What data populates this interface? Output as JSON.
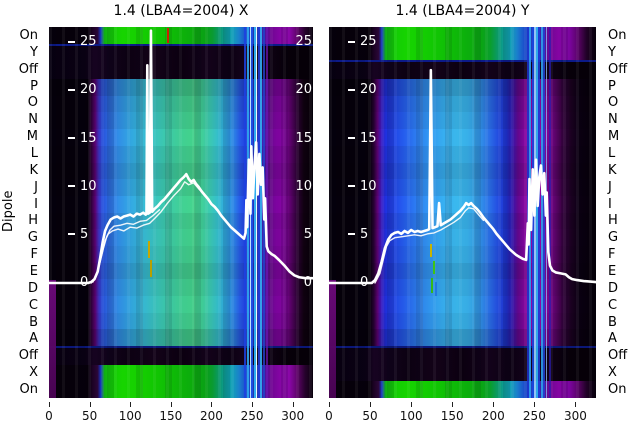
{
  "figure": {
    "ylabel": "Dipole",
    "row_labels": [
      "On",
      "Y",
      "Off",
      "P",
      "O",
      "N",
      "M",
      "L",
      "K",
      "J",
      "I",
      "H",
      "G",
      "F",
      "E",
      "D",
      "C",
      "B",
      "A",
      "Off",
      "X",
      "On"
    ],
    "palette": {
      "curve_white": "#ffffff",
      "heat_green": "#14ce02",
      "heat_cyan": "#33aec6",
      "heat_blue": "#2357de",
      "heat_purple": "#8a08a2",
      "heat_black": "#05000a",
      "mark_red": "#cc2200",
      "mark_yellow": "#c8b400",
      "mark_green": "#3ec414",
      "text_black": "#000000",
      "tick_white": "#ffffff"
    }
  },
  "chart_data": [
    {
      "type": "heatmap+line",
      "title": "1.4 (LBA4=2004) X",
      "x_range": [
        0,
        325
      ],
      "y_range": [
        -11.9,
        26.6
      ],
      "x_ticks": [
        0,
        50,
        100,
        150,
        200,
        250,
        300
      ],
      "y_ticks": [
        0,
        5,
        10,
        15,
        20,
        25
      ],
      "y_tick_labels_right": [
        0,
        5,
        10,
        15,
        20,
        25
      ],
      "row_bands": [
        "bright",
        "dark",
        "dark",
        "sig",
        "sig",
        "sig",
        "sig",
        "sig",
        "sig",
        "sig",
        "sig",
        "sig",
        "sig",
        "sig",
        "sig",
        "sig",
        "sig",
        "sig",
        "sig",
        "dark",
        "bright",
        "bright"
      ],
      "line_main": [
        [
          0,
          0
        ],
        [
          48,
          0
        ],
        [
          52,
          0.1
        ],
        [
          56,
          0.4
        ],
        [
          60,
          1.2
        ],
        [
          63,
          2.6
        ],
        [
          66,
          4.2
        ],
        [
          69,
          5.4
        ],
        [
          72,
          6.0
        ],
        [
          76,
          6.6
        ],
        [
          80,
          6.8
        ],
        [
          84,
          6.9
        ],
        [
          88,
          6.7
        ],
        [
          92,
          6.9
        ],
        [
          96,
          7.0
        ],
        [
          100,
          7.1
        ],
        [
          104,
          6.9
        ],
        [
          108,
          7.2
        ],
        [
          112,
          7.1
        ],
        [
          116,
          7.3
        ],
        [
          119,
          7.1
        ],
        [
          120,
          7.2
        ],
        [
          121,
          22.6
        ],
        [
          122,
          7.2
        ],
        [
          124,
          7.3
        ],
        [
          125.5,
          26.2
        ],
        [
          127,
          7.4
        ],
        [
          130,
          7.7
        ],
        [
          134,
          8.0
        ],
        [
          138,
          8.4
        ],
        [
          142,
          8.7
        ],
        [
          146,
          9.1
        ],
        [
          150,
          9.5
        ],
        [
          154,
          9.9
        ],
        [
          158,
          10.3
        ],
        [
          162,
          10.7
        ],
        [
          166,
          11.0
        ],
        [
          169,
          11.3
        ],
        [
          172,
          10.8
        ],
        [
          175,
          10.5
        ],
        [
          178,
          10.7
        ],
        [
          181,
          10.3
        ],
        [
          184,
          10.0
        ],
        [
          188,
          9.5
        ],
        [
          192,
          9.1
        ],
        [
          196,
          8.7
        ],
        [
          200,
          8.2
        ],
        [
          204,
          7.9
        ],
        [
          208,
          7.5
        ],
        [
          212,
          7.0
        ],
        [
          216,
          6.6
        ],
        [
          220,
          6.2
        ],
        [
          224,
          5.8
        ],
        [
          228,
          5.5
        ],
        [
          232,
          5.2
        ],
        [
          236,
          4.9
        ],
        [
          240,
          4.6
        ],
        [
          242,
          5.2
        ],
        [
          243,
          8.6
        ],
        [
          244,
          5.8
        ],
        [
          246,
          12.8
        ],
        [
          248,
          7.2
        ],
        [
          249,
          14.2
        ],
        [
          251,
          8.8
        ],
        [
          253,
          12.2
        ],
        [
          255,
          14.6
        ],
        [
          257,
          9.2
        ],
        [
          259,
          13.4
        ],
        [
          261,
          10.2
        ],
        [
          263,
          12.0
        ],
        [
          265,
          6.6
        ],
        [
          266,
          8.8
        ],
        [
          268,
          3.8
        ],
        [
          270,
          3.3
        ],
        [
          274,
          3.0
        ],
        [
          278,
          2.8
        ],
        [
          283,
          2.4
        ],
        [
          290,
          1.8
        ],
        [
          296,
          1.2
        ],
        [
          302,
          0.8
        ],
        [
          308,
          0.6
        ],
        [
          316,
          0.5
        ],
        [
          325,
          0.5
        ]
      ],
      "line_ghosts": [
        [
          [
            52,
            0
          ],
          [
            57,
            0.6
          ],
          [
            61,
            1.6
          ],
          [
            65,
            3.0
          ],
          [
            69,
            4.4
          ],
          [
            73,
            5.1
          ],
          [
            78,
            5.4
          ],
          [
            85,
            5.6
          ],
          [
            92,
            5.4
          ],
          [
            100,
            5.8
          ],
          [
            108,
            5.7
          ],
          [
            116,
            6.0
          ],
          [
            124,
            6.2
          ],
          [
            130,
            6.7
          ],
          [
            138,
            7.4
          ],
          [
            146,
            8.3
          ],
          [
            154,
            9.1
          ],
          [
            162,
            9.8
          ],
          [
            167,
            10.5
          ],
          [
            172,
            10.2
          ],
          [
            178,
            10.4
          ],
          [
            184,
            9.8
          ],
          [
            190,
            9.3
          ]
        ],
        [
          [
            54,
            0.1
          ],
          [
            59,
            1.0
          ],
          [
            63,
            2.2
          ],
          [
            67,
            3.6
          ],
          [
            71,
            4.8
          ],
          [
            75,
            5.5
          ],
          [
            80,
            5.9
          ],
          [
            88,
            6.0
          ],
          [
            96,
            6.2
          ],
          [
            104,
            6.1
          ],
          [
            112,
            6.4
          ],
          [
            120,
            6.5
          ],
          [
            128,
            7.0
          ],
          [
            136,
            7.6
          ]
        ]
      ],
      "marks": [
        {
          "x": 145,
          "v1": 24.9,
          "v2": 26.5,
          "w": 2,
          "color": "#cc2200"
        },
        {
          "x": 122,
          "v1": 2.6,
          "v2": 4.4,
          "w": 2,
          "color": "#c8a800"
        },
        {
          "x": 124,
          "v1": 0.6,
          "v2": 2.4,
          "w": 2,
          "color": "#b8a000"
        }
      ],
      "rfi_stripes": [
        {
          "x": 240,
          "w": 2,
          "color": "#1b3fe0",
          "opacity": 0.85
        },
        {
          "x": 244,
          "w": 2,
          "color": "#2fa9f0",
          "opacity": 0.9
        },
        {
          "x": 247,
          "w": 1,
          "color": "#bfe8ff",
          "opacity": 0.95
        },
        {
          "x": 249,
          "w": 2,
          "color": "#1e4fe8",
          "opacity": 0.9
        },
        {
          "x": 252,
          "w": 3,
          "color": "#2fb4f2",
          "opacity": 0.95
        },
        {
          "x": 255,
          "w": 1,
          "color": "#ffffff",
          "opacity": 0.9
        },
        {
          "x": 257,
          "w": 2,
          "color": "#1d3bd8",
          "opacity": 0.85
        },
        {
          "x": 260,
          "w": 2,
          "color": "#35aef0",
          "opacity": 0.9
        },
        {
          "x": 263,
          "w": 2,
          "color": "#2342cc",
          "opacity": 0.8
        },
        {
          "x": 267,
          "w": 2,
          "color": "#6d15b5",
          "opacity": 0.7
        }
      ]
    },
    {
      "type": "heatmap+line",
      "title": "1.4 (LBA4=2004) Y",
      "x_range": [
        0,
        325
      ],
      "y_range": [
        -11.9,
        26.6
      ],
      "x_ticks": [
        0,
        50,
        100,
        150,
        200,
        250,
        300
      ],
      "y_ticks": [
        0,
        5,
        10,
        15,
        20,
        25
      ],
      "row_bands": [
        "bright",
        "bright",
        "dark",
        "sig",
        "sig",
        "sig",
        "sig",
        "sig",
        "sig",
        "sig",
        "sig",
        "sig",
        "sig",
        "sig",
        "sig",
        "sig",
        "sig",
        "sig",
        "sig",
        "dark",
        "dark",
        "bright"
      ],
      "line_main": [
        [
          0,
          0
        ],
        [
          52,
          0
        ],
        [
          56,
          0.3
        ],
        [
          60,
          1.0
        ],
        [
          64,
          2.2
        ],
        [
          68,
          3.6
        ],
        [
          72,
          4.5
        ],
        [
          76,
          5.0
        ],
        [
          80,
          5.2
        ],
        [
          84,
          5.3
        ],
        [
          88,
          5.1
        ],
        [
          92,
          5.4
        ],
        [
          96,
          5.2
        ],
        [
          100,
          5.5
        ],
        [
          104,
          5.3
        ],
        [
          108,
          5.4
        ],
        [
          112,
          5.3
        ],
        [
          116,
          5.4
        ],
        [
          120,
          5.5
        ],
        [
          122,
          5.6
        ],
        [
          124,
          22.1
        ],
        [
          126,
          5.7
        ],
        [
          129,
          5.8
        ],
        [
          132,
          5.9
        ],
        [
          134,
          8.3
        ],
        [
          136,
          6.0
        ],
        [
          140,
          6.2
        ],
        [
          144,
          6.4
        ],
        [
          148,
          6.6
        ],
        [
          152,
          6.9
        ],
        [
          156,
          7.2
        ],
        [
          160,
          7.5
        ],
        [
          164,
          7.9
        ],
        [
          167,
          8.3
        ],
        [
          170,
          8.1
        ],
        [
          173,
          8.3
        ],
        [
          176,
          8.0
        ],
        [
          180,
          7.7
        ],
        [
          184,
          7.3
        ],
        [
          188,
          6.8
        ],
        [
          192,
          6.4
        ],
        [
          196,
          6.0
        ],
        [
          200,
          5.6
        ],
        [
          204,
          5.1
        ],
        [
          208,
          4.7
        ],
        [
          212,
          4.3
        ],
        [
          216,
          3.9
        ],
        [
          220,
          3.5
        ],
        [
          224,
          3.2
        ],
        [
          228,
          2.9
        ],
        [
          232,
          2.7
        ],
        [
          236,
          2.5
        ],
        [
          240,
          2.4
        ],
        [
          242,
          6.2
        ],
        [
          243,
          4.0
        ],
        [
          244,
          10.8
        ],
        [
          246,
          5.5
        ],
        [
          248,
          11.8
        ],
        [
          250,
          7.0
        ],
        [
          252,
          12.8
        ],
        [
          254,
          8.0
        ],
        [
          256,
          11.0
        ],
        [
          258,
          12.2
        ],
        [
          260,
          9.2
        ],
        [
          262,
          11.4
        ],
        [
          264,
          7.0
        ],
        [
          265,
          9.4
        ],
        [
          267,
          3.2
        ],
        [
          269,
          1.8
        ],
        [
          272,
          1.3
        ],
        [
          276,
          1.1
        ],
        [
          282,
          1.0
        ],
        [
          288,
          0.9
        ],
        [
          292,
          0.6
        ],
        [
          296,
          0.4
        ],
        [
          302,
          0.3
        ],
        [
          310,
          0.2
        ],
        [
          318,
          0.15
        ],
        [
          325,
          0.1
        ]
      ],
      "line_ghosts": [
        [
          [
            56,
            0
          ],
          [
            62,
            1.0
          ],
          [
            66,
            2.4
          ],
          [
            70,
            3.8
          ],
          [
            74,
            4.4
          ],
          [
            80,
            4.7
          ],
          [
            88,
            4.8
          ],
          [
            96,
            4.9
          ],
          [
            104,
            5.0
          ],
          [
            112,
            4.9
          ],
          [
            120,
            5.1
          ],
          [
            128,
            5.2
          ],
          [
            136,
            5.5
          ],
          [
            144,
            5.9
          ],
          [
            152,
            6.3
          ],
          [
            160,
            6.8
          ],
          [
            166,
            7.5
          ],
          [
            170,
            7.8
          ],
          [
            176,
            7.7
          ],
          [
            182,
            7.1
          ],
          [
            188,
            6.5
          ]
        ]
      ],
      "marks": [
        {
          "x": 123,
          "v1": 2.7,
          "v2": 4.0,
          "w": 2,
          "color": "#c8b400"
        },
        {
          "x": 127,
          "v1": 0.9,
          "v2": 2.3,
          "w": 2,
          "color": "#3ec414"
        },
        {
          "x": 124,
          "v1": -1.0,
          "v2": 0.5,
          "w": 2,
          "color": "#34b818"
        },
        {
          "x": 129,
          "v1": -1.3,
          "v2": 0.1,
          "w": 2,
          "color": "#2278e0"
        }
      ],
      "rfi_stripes": [
        {
          "x": 241,
          "w": 2,
          "color": "#1c34cc",
          "opacity": 0.85
        },
        {
          "x": 244,
          "w": 2,
          "color": "#2b9ff0",
          "opacity": 0.9
        },
        {
          "x": 247,
          "w": 2,
          "color": "#1a46e0",
          "opacity": 0.9
        },
        {
          "x": 250,
          "w": 2,
          "color": "#9fd4ff",
          "opacity": 0.9
        },
        {
          "x": 252,
          "w": 2,
          "color": "#2fb0f0",
          "opacity": 0.95
        },
        {
          "x": 255,
          "w": 2,
          "color": "#1d3bd8",
          "opacity": 0.85
        },
        {
          "x": 258,
          "w": 2,
          "color": "#2fa0ea",
          "opacity": 0.9
        },
        {
          "x": 261,
          "w": 2,
          "color": "#1e44d4",
          "opacity": 0.85
        },
        {
          "x": 264,
          "w": 1,
          "color": "#8abaf0",
          "opacity": 0.8
        },
        {
          "x": 268,
          "w": 2,
          "color": "#2a1ab0",
          "opacity": 0.7
        }
      ]
    }
  ]
}
